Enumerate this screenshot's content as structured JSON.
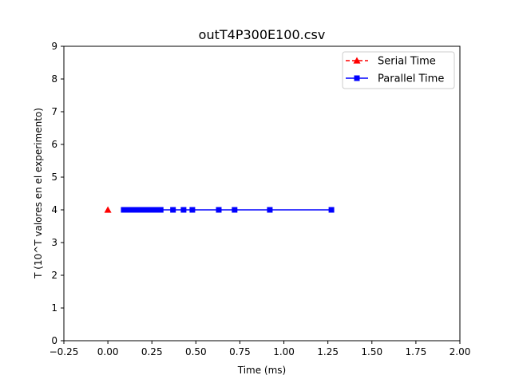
{
  "chart_data": {
    "type": "line",
    "title": "outT4P300E100.csv",
    "xlabel": "Time (ms)",
    "ylabel": "T (10^T valores en el experimento)",
    "xlim": [
      -0.25,
      2.0
    ],
    "ylim": [
      0,
      9
    ],
    "xticks": [
      -0.25,
      0.0,
      0.25,
      0.5,
      0.75,
      1.0,
      1.25,
      1.5,
      1.75,
      2.0
    ],
    "xtick_labels": [
      "−0.25",
      "0.00",
      "0.25",
      "0.50",
      "0.75",
      "1.00",
      "1.25",
      "1.50",
      "1.75",
      "2.00"
    ],
    "yticks": [
      0,
      1,
      2,
      3,
      4,
      5,
      6,
      7,
      8,
      9
    ],
    "ytick_labels": [
      "0",
      "1",
      "2",
      "3",
      "4",
      "5",
      "6",
      "7",
      "8",
      "9"
    ],
    "grid": false,
    "legend_position": "top-right",
    "series": [
      {
        "name": "Serial Time",
        "color": "#ff0000",
        "marker": "triangle",
        "linestyle": "dashed",
        "x": [
          0.0
        ],
        "y": [
          4
        ]
      },
      {
        "name": "Parallel Time",
        "color": "#0000ff",
        "marker": "square",
        "linestyle": "solid",
        "x": [
          0.09,
          0.1,
          0.11,
          0.12,
          0.13,
          0.14,
          0.15,
          0.16,
          0.17,
          0.19,
          0.21,
          0.23,
          0.25,
          0.28,
          0.3,
          0.37,
          0.43,
          0.48,
          0.63,
          0.72,
          0.92,
          1.27
        ],
        "y": [
          4,
          4,
          4,
          4,
          4,
          4,
          4,
          4,
          4,
          4,
          4,
          4,
          4,
          4,
          4,
          4,
          4,
          4,
          4,
          4,
          4,
          4
        ]
      }
    ]
  }
}
